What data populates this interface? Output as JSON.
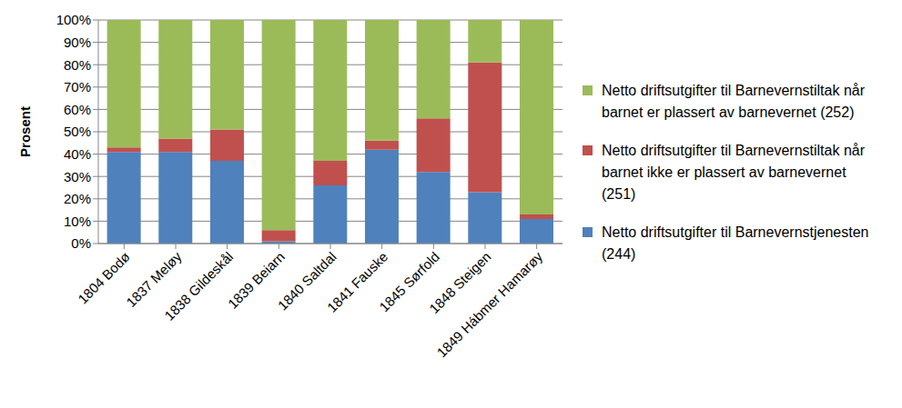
{
  "chart_data": {
    "type": "bar",
    "stacked": true,
    "grid": true,
    "legend": "right",
    "y_label": "Prosent",
    "categories": [
      "1804 Bodø",
      "1837 Meløy",
      "1838 Gildeskål",
      "1839 Beiarn",
      "1840 Saltdal",
      "1841 Fauske",
      "1845 Sørfold",
      "1848 Steigen",
      "1849 Hábmer Hamarøy"
    ],
    "series": [
      {
        "name": "Netto driftsutgifter til Barnevernstjenesten (244)",
        "color": "#4F81BD",
        "values": [
          41,
          41,
          37,
          1,
          26,
          42,
          32,
          23,
          11
        ]
      },
      {
        "name": "Netto driftsutgifter til Barnevernstiltak når barnet ikke er plassert av barnevernet (251)",
        "color": "#C0504D",
        "values": [
          2,
          6,
          14,
          5,
          11,
          4,
          24,
          58,
          2
        ]
      },
      {
        "name": "Netto driftsutgifter til Barnevernstiltak når barnet er plassert av barnevernet (252)",
        "color": "#9BBB59",
        "values": [
          57,
          53,
          49,
          94,
          63,
          54,
          44,
          19,
          87
        ]
      }
    ],
    "ylim": [
      0,
      100
    ],
    "yticks": [
      {
        "value": 0,
        "label": "0%"
      },
      {
        "value": 10,
        "label": "10%"
      },
      {
        "value": 20,
        "label": "20%"
      },
      {
        "value": 30,
        "label": "30%"
      },
      {
        "value": 40,
        "label": "40%"
      },
      {
        "value": 50,
        "label": "50%"
      },
      {
        "value": 60,
        "label": "60%"
      },
      {
        "value": 70,
        "label": "70%"
      },
      {
        "value": 80,
        "label": "80%"
      },
      {
        "value": 90,
        "label": "90%"
      },
      {
        "value": 100,
        "label": "100%"
      }
    ]
  }
}
